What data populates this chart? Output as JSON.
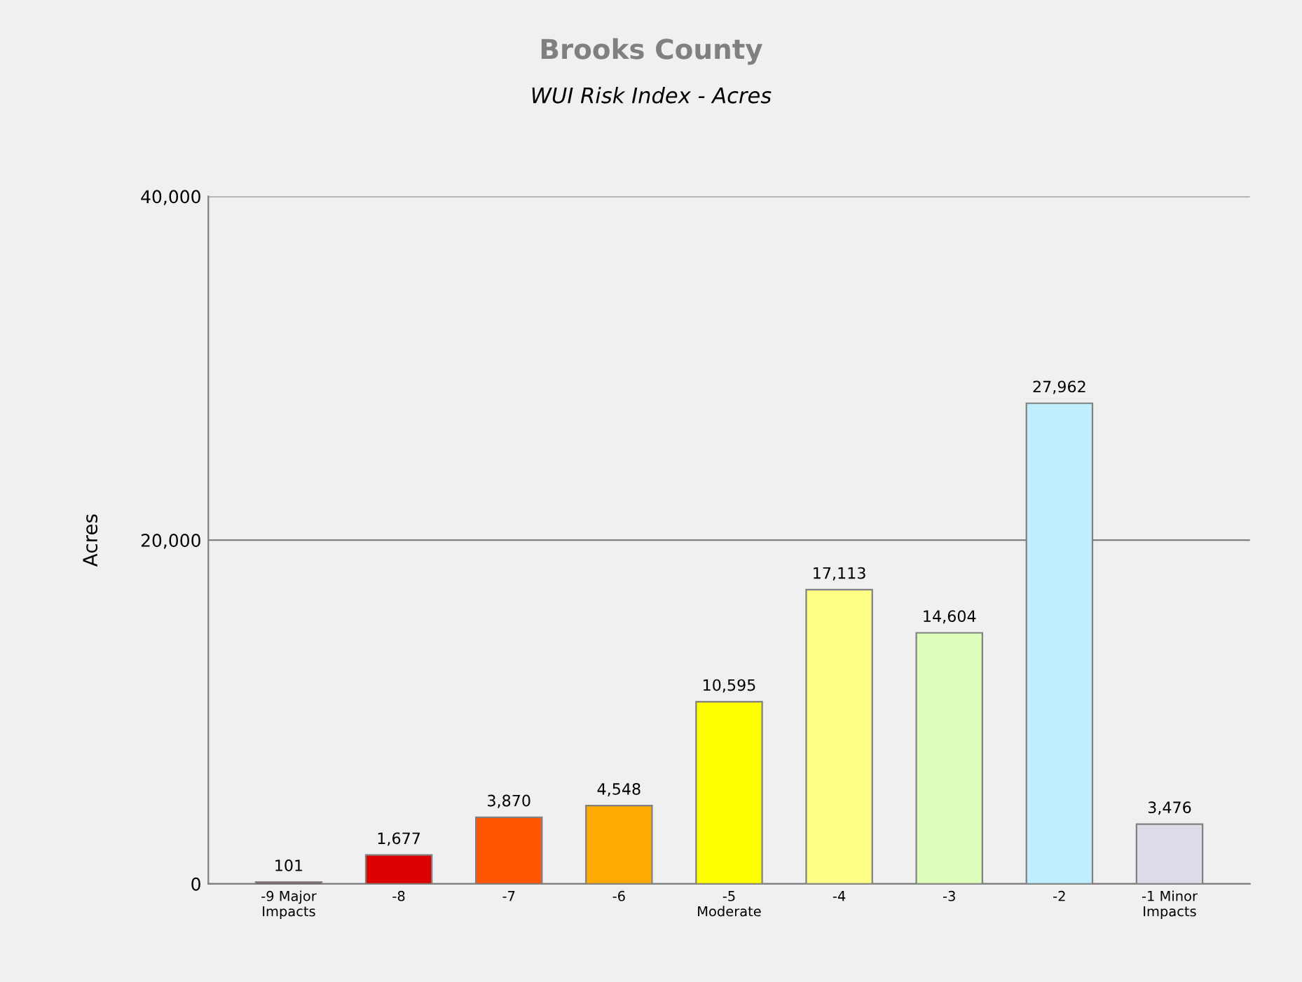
{
  "chart_data": {
    "type": "bar",
    "title": "Brooks County",
    "subtitle": "WUI Risk Index - Acres",
    "ylabel": "Acres",
    "categories": [
      "-9 Major\nImpacts",
      "-8",
      "-7",
      "-6",
      "-5\nModerate",
      "-4",
      "-3",
      "-2",
      "-1 Minor\nImpacts"
    ],
    "values": [
      101,
      1677,
      3870,
      4548,
      10595,
      17113,
      14604,
      27962,
      3476
    ],
    "value_labels": [
      "101",
      "1,677",
      "3,870",
      "4,548",
      "10,595",
      "17,113",
      "14,604",
      "27,962",
      "3,476"
    ],
    "colors": [
      "#6b1010",
      "#dd0000",
      "#ff5500",
      "#ffaa00",
      "#ffff00",
      "#ffff88",
      "#ddffbb",
      "#c0eeff",
      "#dcdce8"
    ],
    "ylim": [
      0,
      40000
    ],
    "yticks": [
      {
        "value": 0,
        "label": "0"
      },
      {
        "value": 20000,
        "label": "20,000"
      },
      {
        "value": 40000,
        "label": "40,000"
      }
    ],
    "grid": "y",
    "legend": false
  }
}
